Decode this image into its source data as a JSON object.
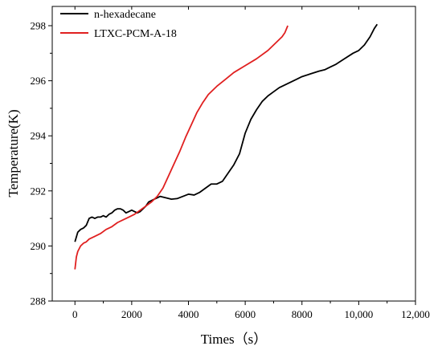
{
  "chart_data": {
    "type": "line",
    "title": "",
    "xlabel": "Times（s）",
    "ylabel": "Temperature(K)",
    "xlim": [
      -800,
      12000
    ],
    "ylim": [
      288,
      298.7
    ],
    "x_ticks": [
      0,
      2000,
      4000,
      6000,
      8000,
      10000,
      12000
    ],
    "x_tick_labels": [
      "0",
      "2000",
      "4000",
      "6000",
      "8000",
      "10,000",
      "12,000"
    ],
    "y_ticks": [
      288,
      290,
      292,
      294,
      296,
      298
    ],
    "y_tick_labels": [
      "288",
      "290",
      "292",
      "294",
      "296",
      "298"
    ],
    "grid": false,
    "legend_position": "top-left",
    "series": [
      {
        "name": "n-hexadecane",
        "color": "#000000",
        "x": [
          0,
          100,
          200,
          300,
          400,
          500,
          600,
          700,
          800,
          900,
          1000,
          1100,
          1200,
          1300,
          1400,
          1500,
          1600,
          1700,
          1800,
          1900,
          2000,
          2100,
          2200,
          2300,
          2400,
          2500,
          2600,
          2700,
          2800,
          2900,
          3000,
          3200,
          3400,
          3600,
          3800,
          4000,
          4200,
          4400,
          4600,
          4800,
          5000,
          5200,
          5400,
          5500,
          5600,
          5800,
          6000,
          6100,
          6200,
          6400,
          6600,
          6800,
          7000,
          7200,
          7500,
          7800,
          8000,
          8300,
          8600,
          8800,
          9000,
          9200,
          9500,
          9800,
          10000,
          10200,
          10400,
          10550,
          10650
        ],
        "values": [
          290.15,
          290.5,
          290.6,
          290.65,
          290.75,
          291.0,
          291.05,
          291.0,
          291.05,
          291.05,
          291.1,
          291.05,
          291.15,
          291.2,
          291.3,
          291.35,
          291.35,
          291.3,
          291.2,
          291.25,
          291.3,
          291.25,
          291.2,
          291.25,
          291.35,
          291.45,
          291.6,
          291.65,
          291.7,
          291.75,
          291.8,
          291.75,
          291.7,
          291.72,
          291.8,
          291.88,
          291.85,
          291.95,
          292.1,
          292.25,
          292.25,
          292.35,
          292.65,
          292.8,
          292.95,
          293.35,
          294.1,
          294.35,
          294.6,
          294.95,
          295.25,
          295.45,
          295.6,
          295.75,
          295.9,
          296.05,
          296.15,
          296.25,
          296.35,
          296.4,
          296.5,
          296.6,
          296.8,
          297.0,
          297.1,
          297.3,
          297.6,
          297.9,
          298.05
        ]
      },
      {
        "name": "LTXC-PCM-A-18",
        "color": "#e02020",
        "x": [
          0,
          50,
          100,
          200,
          300,
          400,
          500,
          700,
          900,
          1100,
          1300,
          1500,
          1700,
          1900,
          2100,
          2300,
          2500,
          2700,
          2900,
          3100,
          3300,
          3500,
          3700,
          3900,
          4100,
          4300,
          4500,
          4700,
          5000,
          5300,
          5600,
          6000,
          6400,
          6800,
          7100,
          7300,
          7400,
          7500
        ],
        "values": [
          289.15,
          289.6,
          289.8,
          290.0,
          290.1,
          290.15,
          290.25,
          290.35,
          290.45,
          290.6,
          290.7,
          290.85,
          290.95,
          291.05,
          291.15,
          291.3,
          291.45,
          291.6,
          291.8,
          292.1,
          292.55,
          293.0,
          293.45,
          293.95,
          294.4,
          294.85,
          295.2,
          295.5,
          295.8,
          296.05,
          296.3,
          296.55,
          296.8,
          297.1,
          297.4,
          297.6,
          297.75,
          298.0
        ]
      }
    ]
  }
}
